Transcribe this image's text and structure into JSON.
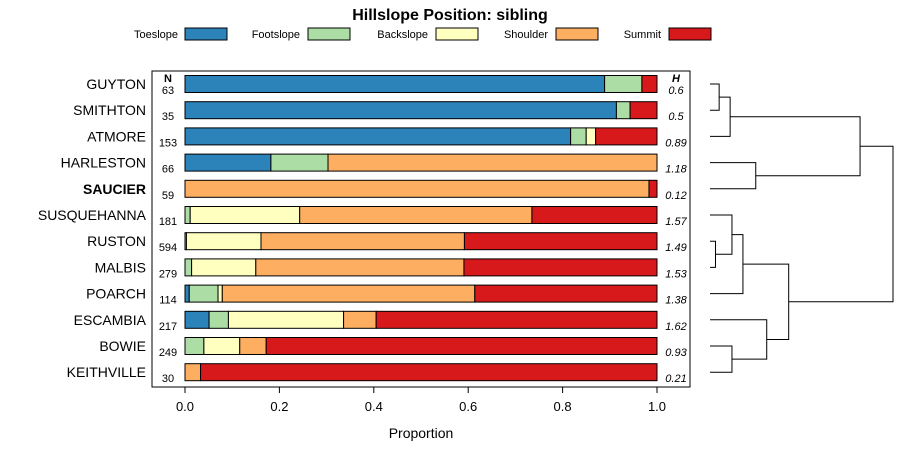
{
  "chart_data": {
    "type": "bar",
    "stacked": true,
    "orientation": "horizontal",
    "title": "Hillslope Position: sibling",
    "xlabel": "Proportion",
    "xlim": [
      0,
      1
    ],
    "xticks": [
      "0.0",
      "0.2",
      "0.4",
      "0.6",
      "0.8",
      "1.0"
    ],
    "n_header": "N",
    "h_header": "H",
    "legend_position": "top",
    "series": [
      {
        "name": "Toeslope",
        "color": "#2b83ba"
      },
      {
        "name": "Footslope",
        "color": "#abdda4"
      },
      {
        "name": "Backslope",
        "color": "#ffffbf"
      },
      {
        "name": "Shoulder",
        "color": "#fdae61"
      },
      {
        "name": "Summit",
        "color": "#d7191c"
      }
    ],
    "rows": [
      {
        "label": "GUYTON",
        "n": "63",
        "h": "0.6",
        "bold": false,
        "values": [
          0.889,
          0.079,
          0.0,
          0.0,
          0.032
        ]
      },
      {
        "label": "SMITHTON",
        "n": "35",
        "h": "0.5",
        "bold": false,
        "values": [
          0.914,
          0.029,
          0.0,
          0.0,
          0.057
        ]
      },
      {
        "label": "ATMORE",
        "n": "153",
        "h": "0.89",
        "bold": false,
        "values": [
          0.817,
          0.033,
          0.02,
          0.0,
          0.13
        ]
      },
      {
        "label": "HARLESTON",
        "n": "66",
        "h": "1.18",
        "bold": false,
        "values": [
          0.182,
          0.121,
          0.0,
          0.697,
          0.0
        ]
      },
      {
        "label": "SAUCIER",
        "n": "59",
        "h": "0.12",
        "bold": true,
        "values": [
          0.0,
          0.0,
          0.0,
          0.983,
          0.017
        ]
      },
      {
        "label": "SUSQUEHANNA",
        "n": "181",
        "h": "1.57",
        "bold": false,
        "values": [
          0.0,
          0.011,
          0.232,
          0.492,
          0.265
        ]
      },
      {
        "label": "RUSTON",
        "n": "594",
        "h": "1.49",
        "bold": false,
        "values": [
          0.0,
          0.003,
          0.158,
          0.431,
          0.408
        ]
      },
      {
        "label": "MALBIS",
        "n": "279",
        "h": "1.53",
        "bold": false,
        "values": [
          0.0,
          0.014,
          0.136,
          0.441,
          0.409
        ]
      },
      {
        "label": "POARCH",
        "n": "114",
        "h": "1.38",
        "bold": false,
        "values": [
          0.009,
          0.061,
          0.009,
          0.535,
          0.386
        ]
      },
      {
        "label": "ESCAMBIA",
        "n": "217",
        "h": "1.62",
        "bold": false,
        "values": [
          0.051,
          0.041,
          0.244,
          0.069,
          0.595
        ]
      },
      {
        "label": "BOWIE",
        "n": "249",
        "h": "0.93",
        "bold": false,
        "values": [
          0.0,
          0.04,
          0.076,
          0.056,
          0.828
        ]
      },
      {
        "label": "KEITHVILLE",
        "n": "30",
        "h": "0.21",
        "bold": false,
        "values": [
          0.0,
          0.0,
          0.0,
          0.033,
          0.967
        ]
      }
    ],
    "dendrogram": {
      "leaf_order": [
        "GUYTON",
        "SMITHTON",
        "ATMORE",
        "HARLESTON",
        "SAUCIER",
        "SUSQUEHANNA",
        "RUSTON",
        "MALBIS",
        "POARCH",
        "ESCAMBIA",
        "BOWIE",
        "KEITHVILLE"
      ],
      "merges": [
        {
          "a": "GUYTON",
          "b": "SMITHTON",
          "height": 0.05
        },
        {
          "a": "m0",
          "b": "ATMORE",
          "height": 0.11
        },
        {
          "a": "HARLESTON",
          "b": "SAUCIER",
          "height": 0.25
        },
        {
          "a": "RUSTON",
          "b": "MALBIS",
          "height": 0.03
        },
        {
          "a": "SUSQUEHANNA",
          "b": "m3",
          "height": 0.12
        },
        {
          "a": "m4",
          "b": "POARCH",
          "height": 0.18
        },
        {
          "a": "BOWIE",
          "b": "KEITHVILLE",
          "height": 0.12
        },
        {
          "a": "ESCAMBIA",
          "b": "m6",
          "height": 0.31
        },
        {
          "a": "m5",
          "b": "m7",
          "height": 0.43
        },
        {
          "a": "m1",
          "b": "m2",
          "height": 0.82
        },
        {
          "a": "m9",
          "b": "m8",
          "height": 1.0
        }
      ]
    }
  }
}
